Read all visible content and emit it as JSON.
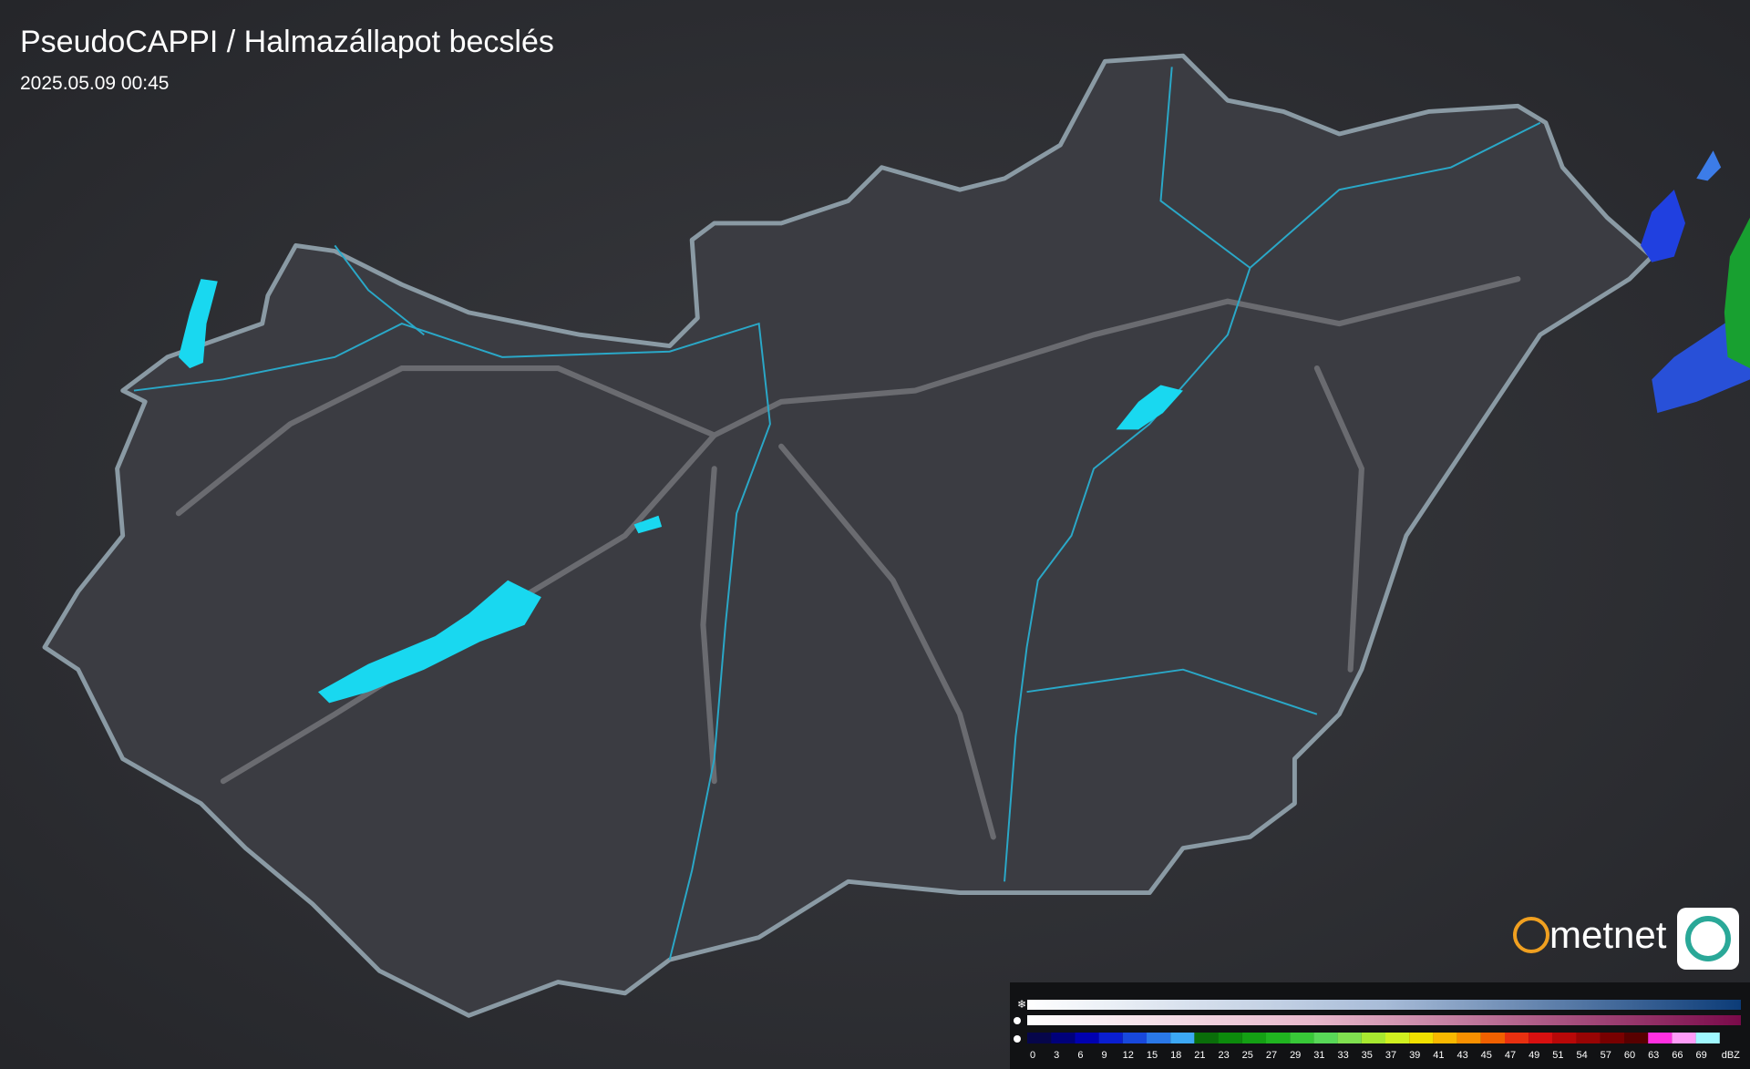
{
  "header": {
    "title": "PseudoCAPPI  / Halmazállapot becslés",
    "timestamp": "2025.05.09 00:45"
  },
  "logo": {
    "text": "metnet"
  },
  "legend": {
    "ticks": [
      0,
      3,
      6,
      9,
      12,
      15,
      18,
      21,
      23,
      25,
      27,
      29,
      31,
      33,
      35,
      37,
      39,
      41,
      43,
      45,
      47,
      49,
      51,
      54,
      57,
      60,
      63,
      66,
      69
    ],
    "colors": [
      "#06064a",
      "#00007a",
      "#0000b0",
      "#0a1ed0",
      "#1848dc",
      "#2a78e8",
      "#3ca8f4",
      "#0a6e0a",
      "#0c8a0c",
      "#14a014",
      "#20b420",
      "#38c838",
      "#58d858",
      "#80e050",
      "#a8e830",
      "#d0f020",
      "#f0e000",
      "#f8b800",
      "#f89000",
      "#f06000",
      "#e83010",
      "#d81010",
      "#b80808",
      "#980404",
      "#780000",
      "#580000",
      "#ff30e0",
      "#ff9cf8",
      "#a0f8ff"
    ],
    "unit": "dBZ"
  }
}
